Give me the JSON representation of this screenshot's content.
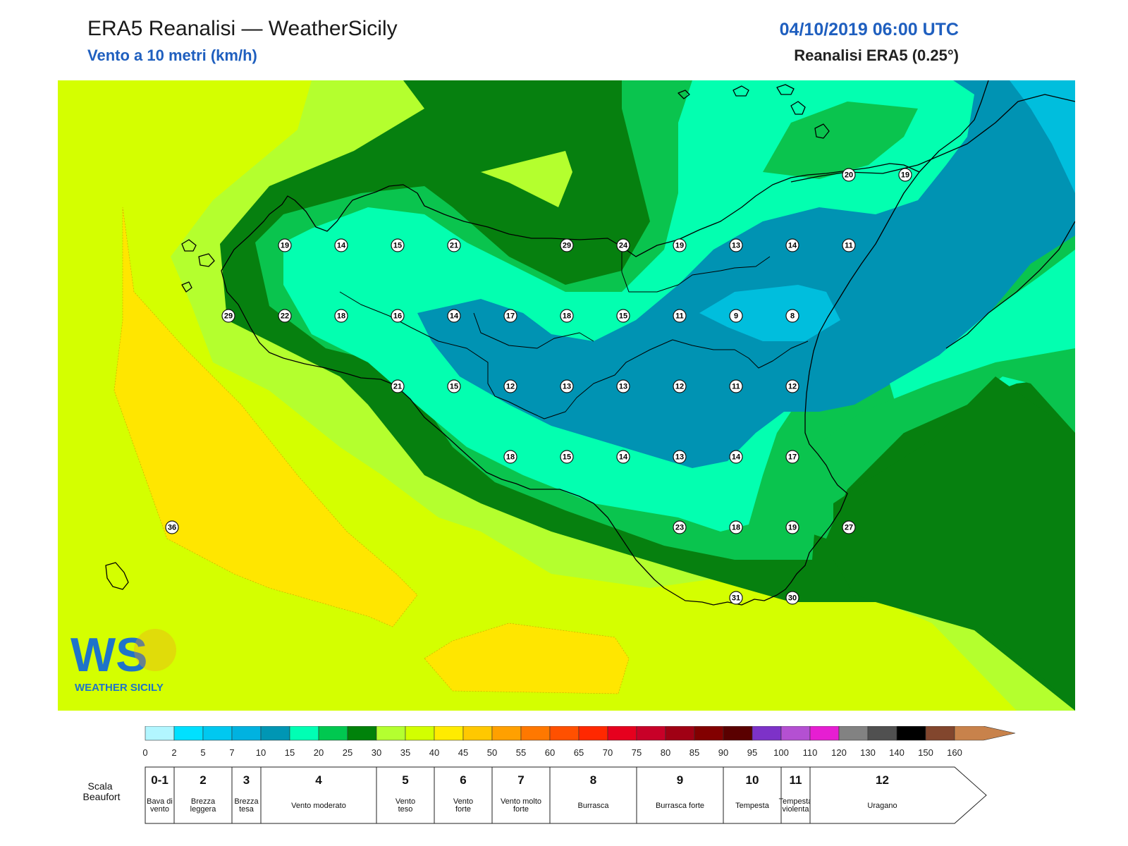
{
  "header": {
    "title": "ERA5 Reanalisi — WeatherSicily",
    "subtitle": "Vento a 10 metri (km/h)",
    "datetime": "04/10/2019 06:00 UTC",
    "source": "Reanalisi ERA5 (0.25°)"
  },
  "logo": {
    "text": "WS",
    "caption": "WEATHER SICILY"
  },
  "colors": {
    "sea_base": "#d4ff00",
    "yellow": "#ffe600",
    "lime": "#b4ff2e",
    "green_dark": "#06800f",
    "green": "#0ac44e",
    "aqua": "#03ffb0",
    "teal": "#0093b3",
    "cyan": "#00bedd",
    "coast": "#000000"
  },
  "stations": [
    {
      "v": "19",
      "col": 0,
      "row": 0
    },
    {
      "v": "14",
      "col": 1,
      "row": 0
    },
    {
      "v": "15",
      "col": 2,
      "row": 0
    },
    {
      "v": "21",
      "col": 3,
      "row": 0
    },
    {
      "v": "29",
      "col": 5,
      "row": 0
    },
    {
      "v": "24",
      "col": 6,
      "row": 0
    },
    {
      "v": "19",
      "col": 7,
      "row": 0
    },
    {
      "v": "13",
      "col": 8,
      "row": 0
    },
    {
      "v": "14",
      "col": 9,
      "row": 0
    },
    {
      "v": "11",
      "col": 10,
      "row": 0
    },
    {
      "v": "29",
      "col": -1,
      "row": 1
    },
    {
      "v": "22",
      "col": 0,
      "row": 1
    },
    {
      "v": "18",
      "col": 1,
      "row": 1
    },
    {
      "v": "16",
      "col": 2,
      "row": 1
    },
    {
      "v": "14",
      "col": 3,
      "row": 1
    },
    {
      "v": "17",
      "col": 4,
      "row": 1
    },
    {
      "v": "18",
      "col": 5,
      "row": 1
    },
    {
      "v": "15",
      "col": 6,
      "row": 1
    },
    {
      "v": "11",
      "col": 7,
      "row": 1
    },
    {
      "v": "9",
      "col": 8,
      "row": 1
    },
    {
      "v": "8",
      "col": 9,
      "row": 1
    },
    {
      "v": "21",
      "col": 2,
      "row": 2
    },
    {
      "v": "15",
      "col": 3,
      "row": 2
    },
    {
      "v": "12",
      "col": 4,
      "row": 2
    },
    {
      "v": "13",
      "col": 5,
      "row": 2
    },
    {
      "v": "13",
      "col": 6,
      "row": 2
    },
    {
      "v": "12",
      "col": 7,
      "row": 2
    },
    {
      "v": "11",
      "col": 8,
      "row": 2
    },
    {
      "v": "12",
      "col": 9,
      "row": 2
    },
    {
      "v": "18",
      "col": 4,
      "row": 3
    },
    {
      "v": "15",
      "col": 5,
      "row": 3
    },
    {
      "v": "14",
      "col": 6,
      "row": 3
    },
    {
      "v": "13",
      "col": 7,
      "row": 3
    },
    {
      "v": "14",
      "col": 8,
      "row": 3
    },
    {
      "v": "17",
      "col": 9,
      "row": 3
    },
    {
      "v": "23",
      "col": 7,
      "row": 4
    },
    {
      "v": "18",
      "col": 8,
      "row": 4
    },
    {
      "v": "19",
      "col": 9,
      "row": 4
    },
    {
      "v": "27",
      "col": 10,
      "row": 4
    },
    {
      "v": "31",
      "col": 8,
      "row": 5
    },
    {
      "v": "30",
      "col": 9,
      "row": 5
    },
    {
      "v": "20",
      "col": 10,
      "row": -1
    },
    {
      "v": "19",
      "col": 11,
      "row": -1
    },
    {
      "v": "36",
      "col": -2,
      "row": 4
    }
  ],
  "colorbar": {
    "ticks": [
      "0",
      "2",
      "5",
      "7",
      "10",
      "15",
      "20",
      "25",
      "30",
      "35",
      "40",
      "45",
      "50",
      "55",
      "60",
      "65",
      "70",
      "75",
      "80",
      "85",
      "90",
      "95",
      "100",
      "110",
      "120",
      "130",
      "140",
      "150",
      "160"
    ],
    "colors": [
      "#b2f6ff",
      "#00e0ff",
      "#00c8f0",
      "#00b2e0",
      "#0096b4",
      "#00ffb4",
      "#00c850",
      "#00820a",
      "#b4ff30",
      "#d2ff00",
      "#ffeb00",
      "#ffc800",
      "#ffa000",
      "#ff7800",
      "#ff5000",
      "#ff2800",
      "#e6001e",
      "#c80028",
      "#a00014",
      "#820000",
      "#5a0000",
      "#7d32c8",
      "#b450d2",
      "#e61ed2",
      "#828282",
      "#505050",
      "#000000",
      "#82462d",
      "#c8824b"
    ]
  },
  "beaufort": {
    "heading": "Scala Beaufort",
    "scale": [
      {
        "num": "0-1",
        "name": "Bava di vento",
        "from": 0,
        "to": 2
      },
      {
        "num": "2",
        "name": "Brezza leggera",
        "from": 2,
        "to": 7
      },
      {
        "num": "3",
        "name": "Brezza tesa",
        "from": 7,
        "to": 10
      },
      {
        "num": "4",
        "name": "Vento moderato",
        "from": 10,
        "to": 30
      },
      {
        "num": "5",
        "name": "Vento teso",
        "from": 30,
        "to": 40
      },
      {
        "num": "6",
        "name": "Vento forte",
        "from": 40,
        "to": 50
      },
      {
        "num": "7",
        "name": "Vento molto forte",
        "from": 50,
        "to": 60
      },
      {
        "num": "8",
        "name": "Burrasca",
        "from": 60,
        "to": 75
      },
      {
        "num": "9",
        "name": "Burrasca forte",
        "from": 75,
        "to": 90
      },
      {
        "num": "10",
        "name": "Tempesta",
        "from": 90,
        "to": 100
      },
      {
        "num": "11",
        "name": "Tempesta violenta",
        "from": 100,
        "to": 110
      },
      {
        "num": "12",
        "name": "Uragano",
        "from": 110,
        "to": 160
      }
    ]
  }
}
